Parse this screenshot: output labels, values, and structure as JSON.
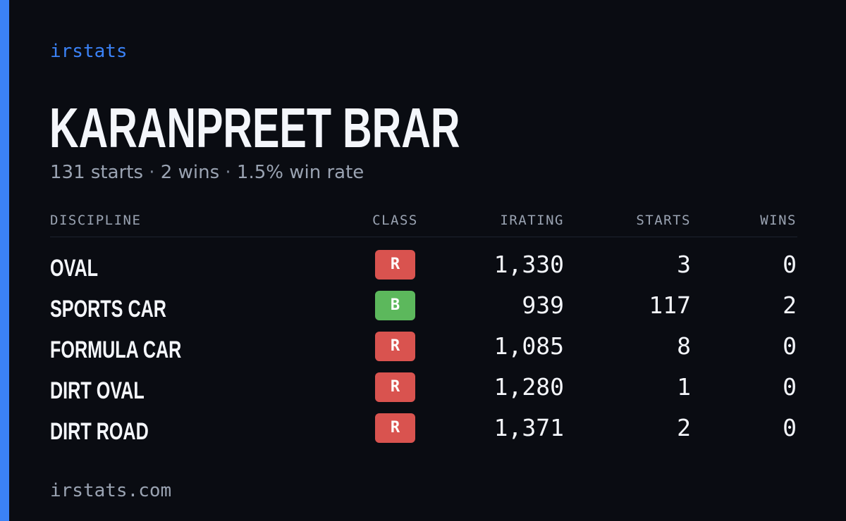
{
  "colors": {
    "accent": "#3b82f6",
    "background": "#0a0c12",
    "class_R": "#d9534f",
    "class_B": "#5cb85c"
  },
  "brand": "irstats",
  "player": {
    "name": "KARANPREET BRAR",
    "starts_text": "131 starts",
    "wins_text": "2 wins",
    "win_rate_text": "1.5% win rate",
    "separator": "·"
  },
  "table": {
    "headers": {
      "discipline": "DISCIPLINE",
      "class": "CLASS",
      "irating": "IRATING",
      "starts": "STARTS",
      "wins": "WINS"
    },
    "rows": [
      {
        "discipline": "OVAL",
        "class": "R",
        "irating": "1,330",
        "starts": "3",
        "wins": "0"
      },
      {
        "discipline": "SPORTS CAR",
        "class": "B",
        "irating": "939",
        "starts": "117",
        "wins": "2"
      },
      {
        "discipline": "FORMULA CAR",
        "class": "R",
        "irating": "1,085",
        "starts": "8",
        "wins": "0"
      },
      {
        "discipline": "DIRT OVAL",
        "class": "R",
        "irating": "1,280",
        "starts": "1",
        "wins": "0"
      },
      {
        "discipline": "DIRT ROAD",
        "class": "R",
        "irating": "1,371",
        "starts": "2",
        "wins": "0"
      }
    ]
  },
  "footer": "irstats.com"
}
